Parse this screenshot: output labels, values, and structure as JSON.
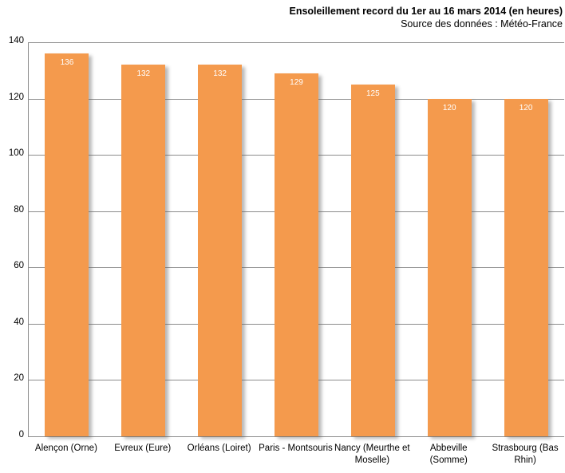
{
  "chart_data": {
    "type": "bar",
    "title": "Ensoleillement record du 1er au 16 mars 2014 (en heures)",
    "subtitle": "Source des données : Météo-France",
    "categories": [
      "Alençon (Orne)",
      "Evreux (Eure)",
      "Orléans (Loiret)",
      "Paris - Montsouris",
      "Nancy (Meurthe et Moselle)",
      "Abbeville (Somme)",
      "Strasbourg (Bas Rhin)"
    ],
    "values": [
      136,
      132,
      132,
      129,
      125,
      120,
      120
    ],
    "value_labels": [
      "136",
      "132",
      "132",
      "129",
      "125",
      "120",
      "120"
    ],
    "xlabel": "",
    "ylabel": "",
    "ylim": [
      0,
      140
    ],
    "yticks": [
      0,
      20,
      40,
      60,
      80,
      100,
      120,
      140
    ],
    "grid": true,
    "legend": "none",
    "colors": {
      "bar": "#f49a4d",
      "gridline": "#8c8c8c",
      "axis_line": "#8c8c8c",
      "value_label_text": "#ffffff",
      "axis_text": "#000000"
    }
  }
}
